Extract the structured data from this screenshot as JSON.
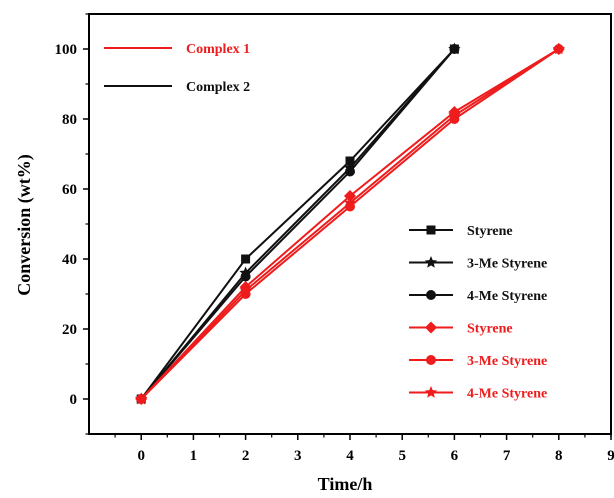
{
  "chart_data": {
    "type": "line",
    "xlabel": "Time/h",
    "ylabel": "Conversion (wt%)",
    "xlim": [
      -1,
      9
    ],
    "ylim": [
      -10,
      110
    ],
    "xticks": [
      0,
      1,
      2,
      3,
      4,
      5,
      6,
      7,
      8,
      9
    ],
    "yticks": [
      0,
      20,
      40,
      60,
      80,
      100
    ],
    "grid": false,
    "group_legend": [
      {
        "label": "Complex 1",
        "color": "#ee1c1c"
      },
      {
        "label": "Complex 2",
        "color": "#111111"
      }
    ],
    "series_legend_placement": "bottom-right",
    "series": [
      {
        "name": "Styrene",
        "group": "Complex 2",
        "marker": "square",
        "color": "#111111",
        "x": [
          0,
          2,
          4,
          6
        ],
        "y": [
          0,
          40,
          68,
          100
        ]
      },
      {
        "name": "3-Me Styrene",
        "group": "Complex 2",
        "marker": "star",
        "color": "#111111",
        "x": [
          0,
          2,
          4,
          6
        ],
        "y": [
          0,
          36,
          66,
          100
        ]
      },
      {
        "name": "4-Me Styrene",
        "group": "Complex 2",
        "marker": "circle",
        "color": "#111111",
        "x": [
          0,
          2,
          4,
          6
        ],
        "y": [
          0,
          35,
          65,
          100
        ]
      },
      {
        "name": "Styrene",
        "group": "Complex 1",
        "marker": "diamond",
        "color": "#ee1c1c",
        "x": [
          0,
          2,
          4,
          6,
          8
        ],
        "y": [
          0,
          32,
          58,
          82,
          100
        ]
      },
      {
        "name": "3-Me Styrene",
        "group": "Complex 1",
        "marker": "circle",
        "color": "#ee1c1c",
        "x": [
          0,
          2,
          4,
          6,
          8
        ],
        "y": [
          0,
          30,
          55,
          80,
          100
        ]
      },
      {
        "name": "4-Me Styrene",
        "group": "Complex 1",
        "marker": "star",
        "color": "#ee1c1c",
        "x": [
          0,
          2,
          4,
          6,
          8
        ],
        "y": [
          0,
          31,
          56,
          81,
          100
        ]
      }
    ]
  }
}
